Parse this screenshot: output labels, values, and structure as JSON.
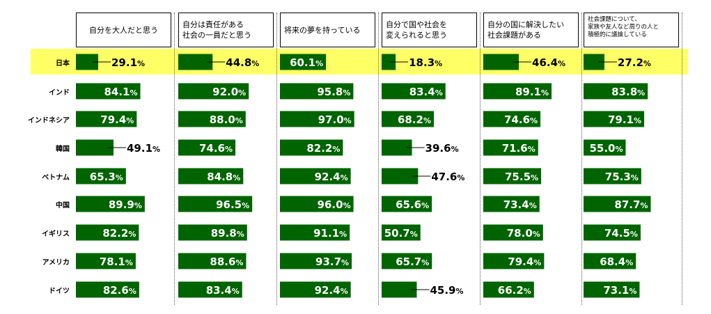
{
  "chart_data": {
    "type": "bar",
    "layout": "small-multiples-horizontal",
    "columns": [
      "自分を大人だと思う",
      "自分は責任がある\n社会の一員だと思う",
      "将来の夢を持っている",
      "自分で国や社会を\n変えられると思う",
      "自分の国に解決したい\n社会課題がある",
      "社会課題について、\n家族や友人など周りの人と\n積極的に議論している"
    ],
    "categories": [
      "日本",
      "インド",
      "インドネシア",
      "韓国",
      "ベトナム",
      "中国",
      "イギリス",
      "アメリカ",
      "ドイツ"
    ],
    "highlight_category": "日本",
    "value_suffix": "%",
    "series": [
      {
        "values": [
          29.1,
          84.1,
          79.4,
          49.1,
          65.3,
          89.9,
          82.2,
          78.1,
          82.6
        ]
      },
      {
        "values": [
          44.8,
          92.0,
          88.0,
          74.6,
          84.8,
          96.5,
          89.8,
          88.6,
          83.4
        ]
      },
      {
        "values": [
          60.1,
          95.8,
          97.0,
          82.2,
          92.4,
          96.0,
          91.1,
          93.7,
          92.4
        ]
      },
      {
        "values": [
          18.3,
          83.4,
          68.2,
          39.6,
          47.6,
          65.6,
          50.7,
          65.7,
          45.9
        ]
      },
      {
        "values": [
          46.4,
          89.1,
          74.6,
          71.6,
          75.5,
          73.4,
          78.0,
          79.4,
          66.2
        ]
      },
      {
        "values": [
          27.2,
          83.8,
          79.1,
          55.0,
          75.3,
          87.7,
          74.5,
          68.4,
          73.1
        ]
      }
    ],
    "xlim": [
      0,
      100
    ],
    "bar_color": "#006400",
    "highlight_color": "#ffff66"
  }
}
